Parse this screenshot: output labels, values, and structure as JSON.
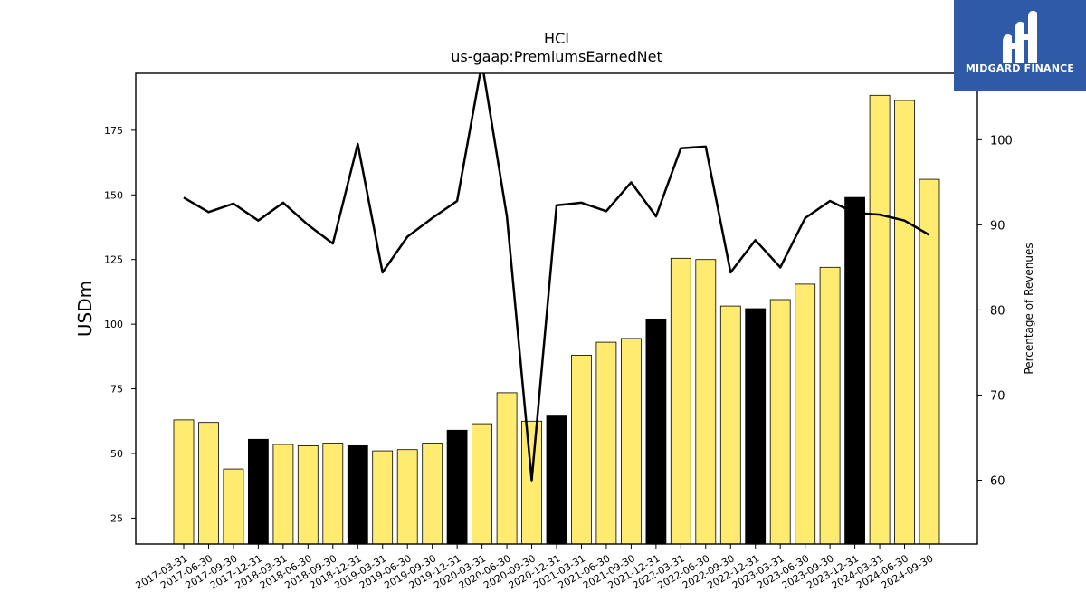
{
  "chart_data": {
    "type": "bar",
    "title": "HCI",
    "subtitle": "us-gaap:PremiumsEarnedNet",
    "ylabel": "USDm",
    "y2label": "Percentage of Revenues",
    "ylim": [
      15,
      197
    ],
    "y2lim": [
      52.5,
      107.8
    ],
    "yticks": [
      25,
      50,
      75,
      100,
      125,
      150,
      175
    ],
    "y2ticks": [
      60,
      70,
      80,
      90,
      100
    ],
    "categories": [
      "2017-03-31",
      "2017-06-30",
      "2017-09-30",
      "2017-12-31",
      "2018-03-31",
      "2018-06-30",
      "2018-09-30",
      "2018-12-31",
      "2019-03-31",
      "2019-06-30",
      "2019-09-30",
      "2019-12-31",
      "2020-03-31",
      "2020-06-30",
      "2020-09-30",
      "2020-12-31",
      "2021-03-31",
      "2021-06-30",
      "2021-09-30",
      "2021-12-31",
      "2022-03-31",
      "2022-06-30",
      "2022-09-30",
      "2022-12-31",
      "2023-03-31",
      "2023-06-30",
      "2023-09-30",
      "2023-12-31",
      "2024-03-31",
      "2024-06-30",
      "2024-09-30"
    ],
    "series": [
      {
        "kind": "bar",
        "values": [
          63,
          62,
          44,
          55.5,
          53.5,
          53,
          54,
          53,
          51,
          51.5,
          54,
          59,
          61.5,
          73.5,
          62.5,
          64.5,
          88,
          93,
          94.5,
          102,
          125.5,
          125,
          107,
          106,
          109.5,
          115.5,
          122,
          149,
          188.5,
          186.5,
          156
        ],
        "highlight": [
          false,
          false,
          false,
          true,
          false,
          false,
          false,
          true,
          false,
          false,
          false,
          true,
          false,
          false,
          false,
          true,
          false,
          false,
          false,
          true,
          false,
          false,
          false,
          true,
          false,
          false,
          false,
          true,
          false,
          false,
          false
        ]
      },
      {
        "kind": "line",
        "axis": "right",
        "values": [
          93.2,
          91.5,
          92.5,
          90.5,
          92.6,
          90.0,
          87.8,
          99.5,
          84.4,
          88.6,
          90.8,
          92.8,
          109.0,
          91.0,
          60.0,
          92.3,
          92.6,
          91.6,
          95.0,
          91.0,
          99.0,
          99.2,
          84.4,
          88.2,
          85.0,
          90.8,
          92.8,
          91.4,
          91.2,
          90.5,
          88.8
        ]
      }
    ],
    "colors": {
      "bar": "#ffeb70",
      "bar_highlight": "#000000",
      "bar_edge": "#000000",
      "line": "#000000"
    },
    "grid": false,
    "legend": "none"
  },
  "logo": {
    "text": "MIDGARD FINANCE",
    "background": "#2e5aa8"
  }
}
